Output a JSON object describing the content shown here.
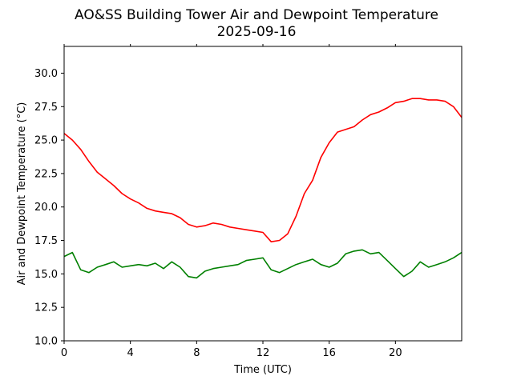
{
  "chart_data": {
    "type": "line",
    "title": "AO&SS Building Tower Air and Dewpoint Temperature",
    "subtitle": "2025-09-16",
    "xlabel": "Time (UTC)",
    "ylabel": "Air and Dewpoint Temperature (°C)",
    "xlim": [
      0,
      24
    ],
    "ylim": [
      10,
      32
    ],
    "xticks": [
      0,
      4,
      8,
      12,
      16,
      20
    ],
    "yticks": [
      10.0,
      12.5,
      15.0,
      17.5,
      20.0,
      22.5,
      25.0,
      27.5,
      30.0
    ],
    "xtick_labels": [
      "0",
      "4",
      "8",
      "12",
      "16",
      "20"
    ],
    "ytick_labels": [
      "10.0",
      "12.5",
      "15.0",
      "17.5",
      "20.0",
      "22.5",
      "25.0",
      "27.5",
      "30.0"
    ],
    "grid": false,
    "legend": "none",
    "series": [
      {
        "color": "#ff0000",
        "x": [
          0,
          0.5,
          1,
          1.5,
          2,
          2.5,
          3,
          3.5,
          4,
          4.5,
          5,
          5.5,
          6,
          6.5,
          7,
          7.5,
          8,
          8.5,
          9,
          9.5,
          10,
          10.5,
          11,
          11.5,
          12,
          12.5,
          13,
          13.5,
          14,
          14.5,
          15,
          15.5,
          16,
          16.5,
          17,
          17.5,
          18,
          18.5,
          19,
          19.5,
          20,
          20.5,
          21,
          21.5,
          22,
          22.5,
          23,
          23.5,
          24
        ],
        "values": [
          25.5,
          25.0,
          24.3,
          23.4,
          22.6,
          22.1,
          21.6,
          21.0,
          20.6,
          20.3,
          19.9,
          19.7,
          19.6,
          19.5,
          19.2,
          18.7,
          18.5,
          18.6,
          18.8,
          18.7,
          18.5,
          18.4,
          18.3,
          18.2,
          18.1,
          17.4,
          17.5,
          18.0,
          19.3,
          21.0,
          22.0,
          23.7,
          24.8,
          25.6,
          25.8,
          26.0,
          26.5,
          26.9,
          27.1,
          27.4,
          27.8,
          27.9,
          28.1,
          28.1,
          28.0,
          28.0,
          27.9,
          27.5,
          26.7
        ]
      },
      {
        "color": "#008000",
        "x": [
          0,
          0.5,
          1,
          1.5,
          2,
          2.5,
          3,
          3.5,
          4,
          4.5,
          5,
          5.5,
          6,
          6.5,
          7,
          7.5,
          8,
          8.5,
          9,
          9.5,
          10,
          10.5,
          11,
          11.5,
          12,
          12.5,
          13,
          13.5,
          14,
          14.5,
          15,
          15.5,
          16,
          16.5,
          17,
          17.5,
          18,
          18.5,
          19,
          19.5,
          20,
          20.5,
          21,
          21.5,
          22,
          22.5,
          23,
          23.5,
          24
        ],
        "values": [
          16.3,
          16.6,
          15.3,
          15.1,
          15.5,
          15.7,
          15.9,
          15.5,
          15.6,
          15.7,
          15.6,
          15.8,
          15.4,
          15.9,
          15.5,
          14.8,
          14.7,
          15.2,
          15.4,
          15.5,
          15.6,
          15.7,
          16.0,
          16.1,
          16.2,
          15.3,
          15.1,
          15.4,
          15.7,
          15.9,
          16.1,
          15.7,
          15.5,
          15.8,
          16.5,
          16.7,
          16.8,
          16.5,
          16.6,
          16.0,
          15.4,
          14.8,
          15.2,
          15.9,
          15.5,
          15.7,
          15.9,
          16.2,
          16.6
        ]
      }
    ]
  }
}
